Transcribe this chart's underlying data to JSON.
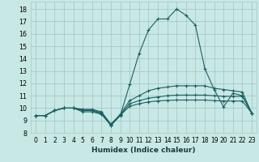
{
  "xlabel": "Humidex (Indice chaleur)",
  "xlim": [
    -0.5,
    23.5
  ],
  "ylim": [
    8.0,
    18.6
  ],
  "yticks": [
    8,
    9,
    10,
    11,
    12,
    13,
    14,
    15,
    16,
    17,
    18
  ],
  "xticks": [
    0,
    1,
    2,
    3,
    4,
    5,
    6,
    7,
    8,
    9,
    10,
    11,
    12,
    13,
    14,
    15,
    16,
    17,
    18,
    19,
    20,
    21,
    22,
    23
  ],
  "bg_color": "#c8e8e6",
  "grid_color": "#a8c8c6",
  "line_color": "#1a6060",
  "line1": [
    9.4,
    9.4,
    9.8,
    10.0,
    10.0,
    9.7,
    9.7,
    9.5,
    8.6,
    9.4,
    11.9,
    14.4,
    16.3,
    17.2,
    17.2,
    18.0,
    17.5,
    16.7,
    13.2,
    11.5,
    10.1,
    11.2,
    11.0,
    9.6
  ],
  "line2": [
    9.4,
    9.4,
    9.8,
    10.0,
    10.0,
    9.9,
    9.9,
    9.7,
    8.7,
    9.5,
    10.6,
    11.0,
    11.4,
    11.6,
    11.7,
    11.8,
    11.8,
    11.8,
    11.8,
    11.6,
    11.5,
    11.4,
    11.3,
    9.6
  ],
  "line3": [
    9.4,
    9.4,
    9.8,
    10.0,
    10.0,
    9.85,
    9.85,
    9.6,
    8.65,
    9.45,
    10.35,
    10.6,
    10.8,
    10.9,
    11.0,
    11.05,
    11.05,
    11.05,
    11.05,
    11.0,
    10.95,
    10.95,
    10.95,
    9.6
  ],
  "line4": [
    9.4,
    9.4,
    9.8,
    10.0,
    10.0,
    9.8,
    9.8,
    9.55,
    8.62,
    9.42,
    10.15,
    10.35,
    10.5,
    10.58,
    10.62,
    10.65,
    10.65,
    10.65,
    10.65,
    10.6,
    10.57,
    10.57,
    10.57,
    9.6
  ]
}
